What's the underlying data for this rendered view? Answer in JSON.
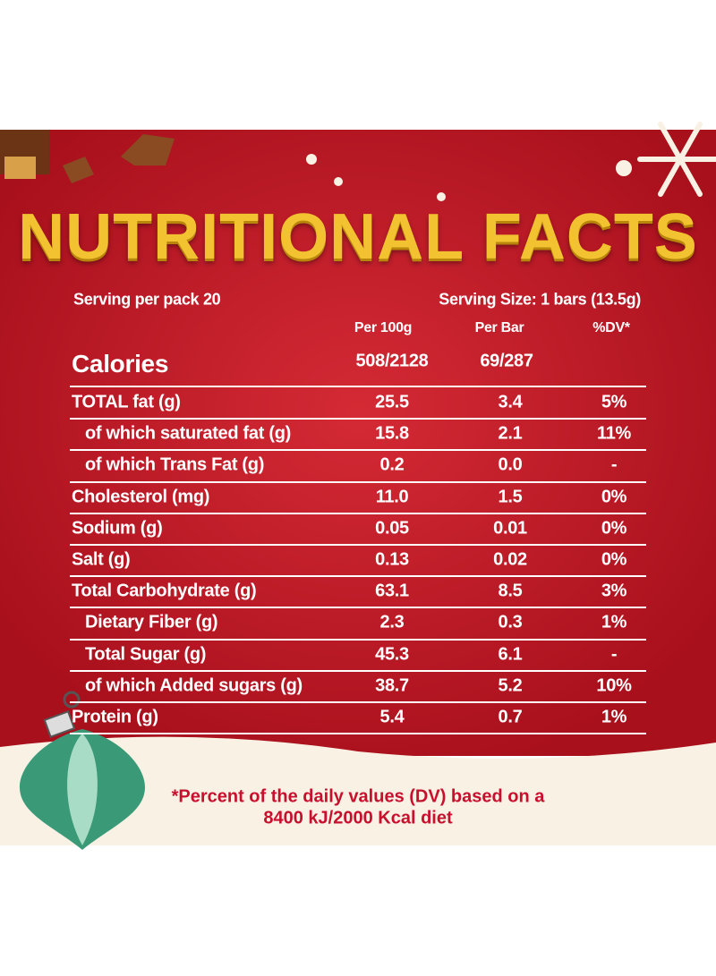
{
  "header": {
    "title": "NUTRITIONAL FACTS"
  },
  "table": {
    "serving_per_pack": "Serving per pack 20",
    "serving_size": "Serving Size: 1 bars (13.5g)",
    "columns": [
      "Per 100g",
      "Per Bar",
      "%DV*"
    ],
    "calories": {
      "label": "Calories",
      "per_100g": "508/2128",
      "per_bar": "69/287"
    },
    "rows": [
      {
        "label": "TOTAL fat (g)",
        "per_100g": "25.5",
        "per_bar": "3.4",
        "dv": "5%",
        "indented": false
      },
      {
        "label": "of which saturated fat (g)",
        "per_100g": "15.8",
        "per_bar": "2.1",
        "dv": "11%",
        "indented": true
      },
      {
        "label": "of which Trans Fat (g)",
        "per_100g": "0.2",
        "per_bar": "0.0",
        "dv": "-",
        "indented": true
      },
      {
        "label": "Cholesterol (mg)",
        "per_100g": "11.0",
        "per_bar": "1.5",
        "dv": "0%",
        "indented": false
      },
      {
        "label": "Sodium (g)",
        "per_100g": "0.05",
        "per_bar": "0.01",
        "dv": "0%",
        "indented": false
      },
      {
        "label": "Salt (g)",
        "per_100g": "0.13",
        "per_bar": "0.02",
        "dv": "0%",
        "indented": false
      },
      {
        "label": "Total Carbohydrate (g)",
        "per_100g": "63.1",
        "per_bar": "8.5",
        "dv": "3%",
        "indented": false
      },
      {
        "label": "Dietary Fiber (g)",
        "per_100g": "2.3",
        "per_bar": "0.3",
        "dv": "1%",
        "indented": true
      },
      {
        "label": "Total Sugar (g)",
        "per_100g": "45.3",
        "per_bar": "6.1",
        "dv": "-",
        "indented": true
      },
      {
        "label": "of which Added sugars (g)",
        "per_100g": "38.7",
        "per_bar": "5.2",
        "dv": "10%",
        "indented": true
      },
      {
        "label": "Protein (g)",
        "per_100g": "5.4",
        "per_bar": "0.7",
        "dv": "1%",
        "indented": false
      }
    ]
  },
  "footnote": {
    "line1": "*Percent of the daily values (DV) based on a",
    "line2": "8400 kJ/2000 Kcal diet"
  }
}
